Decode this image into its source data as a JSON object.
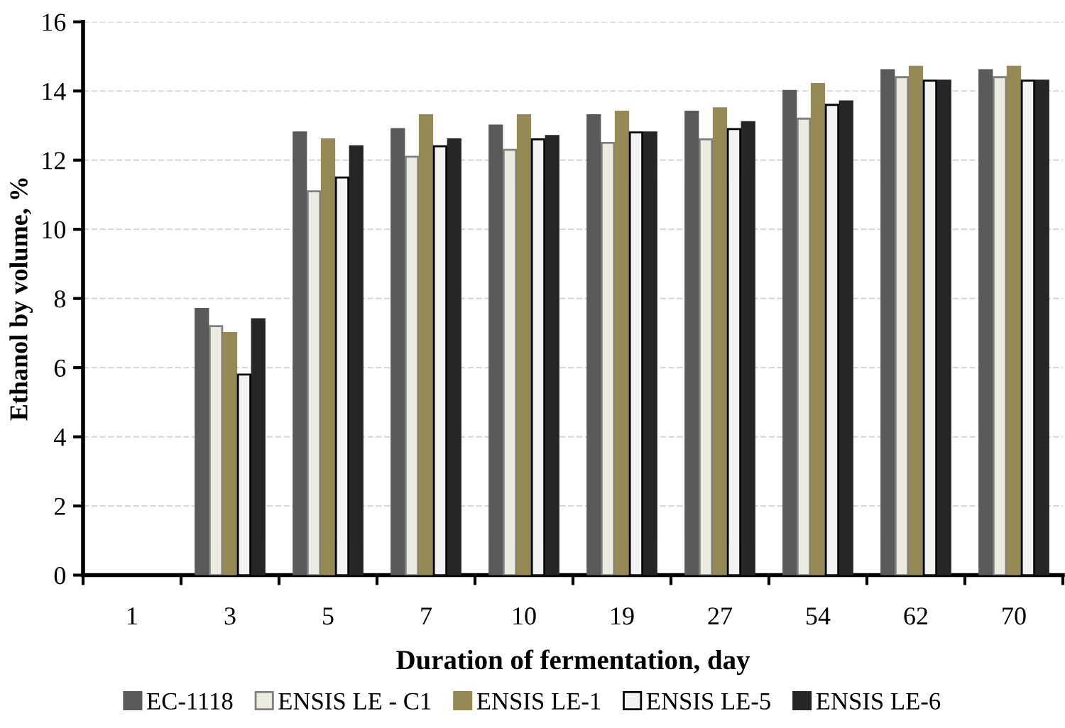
{
  "chart_data": {
    "type": "bar",
    "xlabel": "Duration of fermentation, day",
    "ylabel": "Ethanol by volume, %",
    "categories": [
      "1",
      "3",
      "5",
      "7",
      "10",
      "19",
      "27",
      "54",
      "62",
      "70"
    ],
    "series": [
      {
        "name": "EC-1118",
        "color": "#5a5a5a",
        "values": [
          null,
          7.7,
          12.8,
          12.9,
          13.0,
          13.3,
          13.4,
          14.0,
          14.6,
          14.6
        ]
      },
      {
        "name": "ENSIS LE - C1",
        "color": "#ecebe1",
        "values": [
          null,
          7.2,
          11.1,
          12.1,
          12.3,
          12.5,
          12.6,
          13.2,
          14.4,
          14.4
        ]
      },
      {
        "name": "ENSIS LE-1",
        "color": "#958a55",
        "values": [
          null,
          7.0,
          12.6,
          13.3,
          13.3,
          13.4,
          13.5,
          14.2,
          14.7,
          14.7
        ]
      },
      {
        "name": "ENSIS LE-5",
        "color": "#f2f2f2",
        "values": [
          null,
          5.8,
          11.5,
          12.4,
          12.6,
          12.8,
          12.9,
          13.6,
          14.3,
          14.3
        ]
      },
      {
        "name": "ENSIS LE-6",
        "color": "#262626",
        "values": [
          null,
          7.4,
          12.4,
          12.6,
          12.7,
          12.8,
          13.1,
          13.7,
          14.3,
          14.3
        ]
      }
    ],
    "ylim": [
      0,
      16
    ],
    "yticks": [
      0,
      2,
      4,
      6,
      8,
      10,
      12,
      14,
      16
    ],
    "grid": "y",
    "legend": "bottom"
  }
}
